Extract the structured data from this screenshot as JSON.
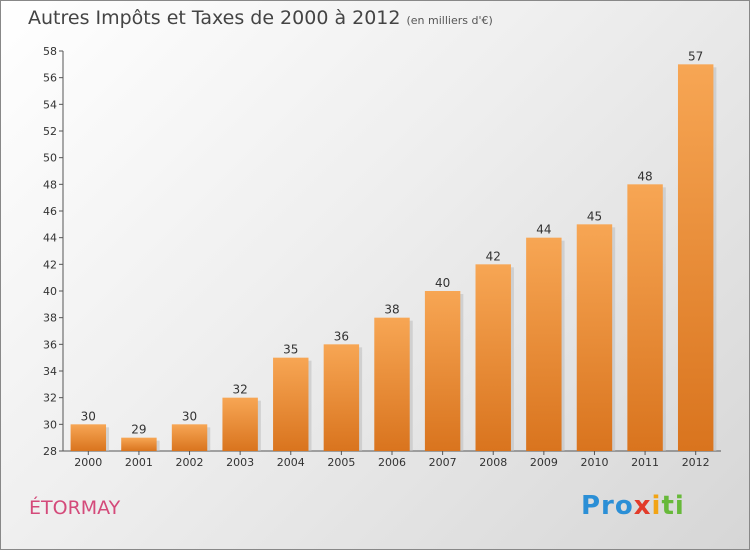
{
  "chart_data": {
    "type": "bar",
    "title": "Autres Impôts et Taxes de 2000 à 2012",
    "subtitle": "(en milliers d'€)",
    "categories": [
      "2000",
      "2001",
      "2002",
      "2003",
      "2004",
      "2005",
      "2006",
      "2007",
      "2008",
      "2009",
      "2010",
      "2011",
      "2012"
    ],
    "values": [
      30,
      29,
      30,
      32,
      35,
      36,
      38,
      40,
      42,
      44,
      45,
      48,
      57
    ],
    "ylim": [
      28,
      58
    ],
    "yticks": [
      28,
      30,
      32,
      34,
      36,
      38,
      40,
      42,
      44,
      46,
      48,
      50,
      52,
      54,
      56,
      58
    ],
    "grid": false,
    "bar_color_light": "#f7a654",
    "bar_color_dark": "#d9741e"
  },
  "footer": {
    "place": "ÉTORMAY",
    "logo_parts": [
      "Pro",
      "x",
      "i",
      "ti"
    ]
  }
}
